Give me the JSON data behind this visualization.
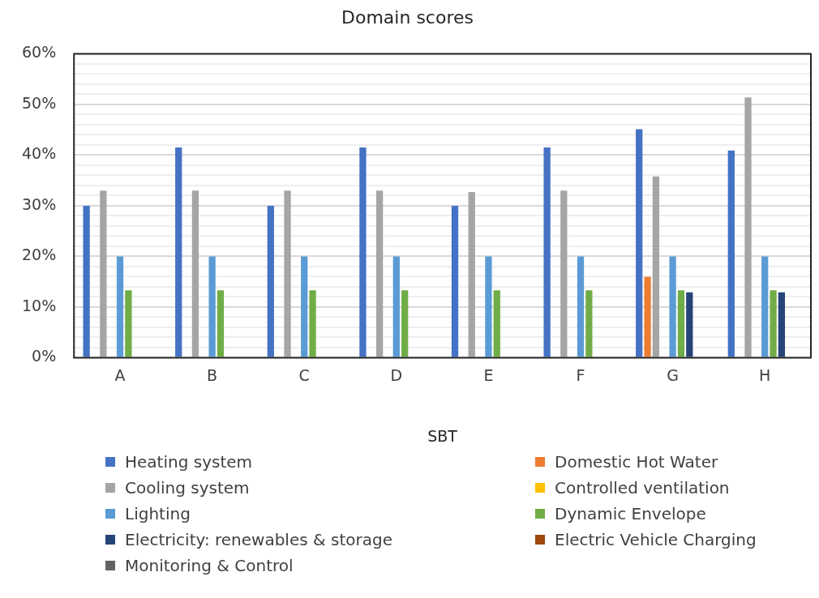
{
  "chart_data": {
    "type": "bar",
    "title": "Domain scores",
    "xlabel": "SBT",
    "categories": [
      "A",
      "B",
      "C",
      "D",
      "E",
      "F",
      "G",
      "H"
    ],
    "series": [
      {
        "name": "Heating system",
        "color": "#4472c4",
        "values": [
          30,
          41.5,
          30,
          41.5,
          30,
          41.5,
          45.1,
          40.9
        ]
      },
      {
        "name": "Domestic Hot Water",
        "color": "#ed7d31",
        "values": [
          null,
          null,
          null,
          null,
          null,
          null,
          16,
          null
        ]
      },
      {
        "name": "Cooling system",
        "color": "#a5a5a5",
        "values": [
          33,
          33,
          33,
          33,
          32.7,
          33,
          35.8,
          51.4
        ]
      },
      {
        "name": "Controlled ventilation",
        "color": "#ffc000",
        "values": [
          null,
          null,
          null,
          null,
          null,
          null,
          null,
          null
        ]
      },
      {
        "name": "Lighting",
        "color": "#5b9bd5",
        "values": [
          20,
          20,
          20,
          20,
          20,
          20,
          20,
          20
        ]
      },
      {
        "name": "Dynamic Envelope",
        "color": "#70ad47",
        "values": [
          13.3,
          13.3,
          13.3,
          13.3,
          13.3,
          13.3,
          13.3,
          13.3
        ]
      },
      {
        "name": "Electricity: renewables & storage",
        "color": "#264478",
        "values": [
          null,
          null,
          null,
          null,
          null,
          null,
          12.9,
          12.9
        ]
      },
      {
        "name": "Electric Vehicle Charging",
        "color": "#9e480e",
        "values": [
          null,
          null,
          null,
          null,
          null,
          null,
          null,
          null
        ]
      },
      {
        "name": "Monitoring & Control",
        "color": "#636363",
        "values": [
          null,
          null,
          null,
          null,
          null,
          null,
          null,
          null
        ]
      }
    ],
    "ylim": [
      0,
      60
    ],
    "yticks": [
      {
        "value": 0,
        "label": "0%"
      },
      {
        "value": 2,
        "label": null
      },
      {
        "value": 4,
        "label": null
      },
      {
        "value": 6,
        "label": null
      },
      {
        "value": 8,
        "label": null
      },
      {
        "value": 10,
        "label": "10%"
      },
      {
        "value": 12,
        "label": null
      },
      {
        "value": 14,
        "label": null
      },
      {
        "value": 16,
        "label": null
      },
      {
        "value": 18,
        "label": null
      },
      {
        "value": 20,
        "label": "20%"
      },
      {
        "value": 22,
        "label": null
      },
      {
        "value": 24,
        "label": null
      },
      {
        "value": 26,
        "label": null
      },
      {
        "value": 28,
        "label": null
      },
      {
        "value": 30,
        "label": "30%"
      },
      {
        "value": 32,
        "label": null
      },
      {
        "value": 34,
        "label": null
      },
      {
        "value": 36,
        "label": null
      },
      {
        "value": 38,
        "label": null
      },
      {
        "value": 40,
        "label": "40%"
      },
      {
        "value": 42,
        "label": null
      },
      {
        "value": 44,
        "label": null
      },
      {
        "value": 46,
        "label": null
      },
      {
        "value": 48,
        "label": null
      },
      {
        "value": 50,
        "label": "50%"
      },
      {
        "value": 52,
        "label": null
      },
      {
        "value": 54,
        "label": null
      },
      {
        "value": 56,
        "label": null
      },
      {
        "value": 58,
        "label": null
      },
      {
        "value": 60,
        "label": "60%"
      }
    ],
    "grid": "y",
    "legend": "bottom"
  }
}
